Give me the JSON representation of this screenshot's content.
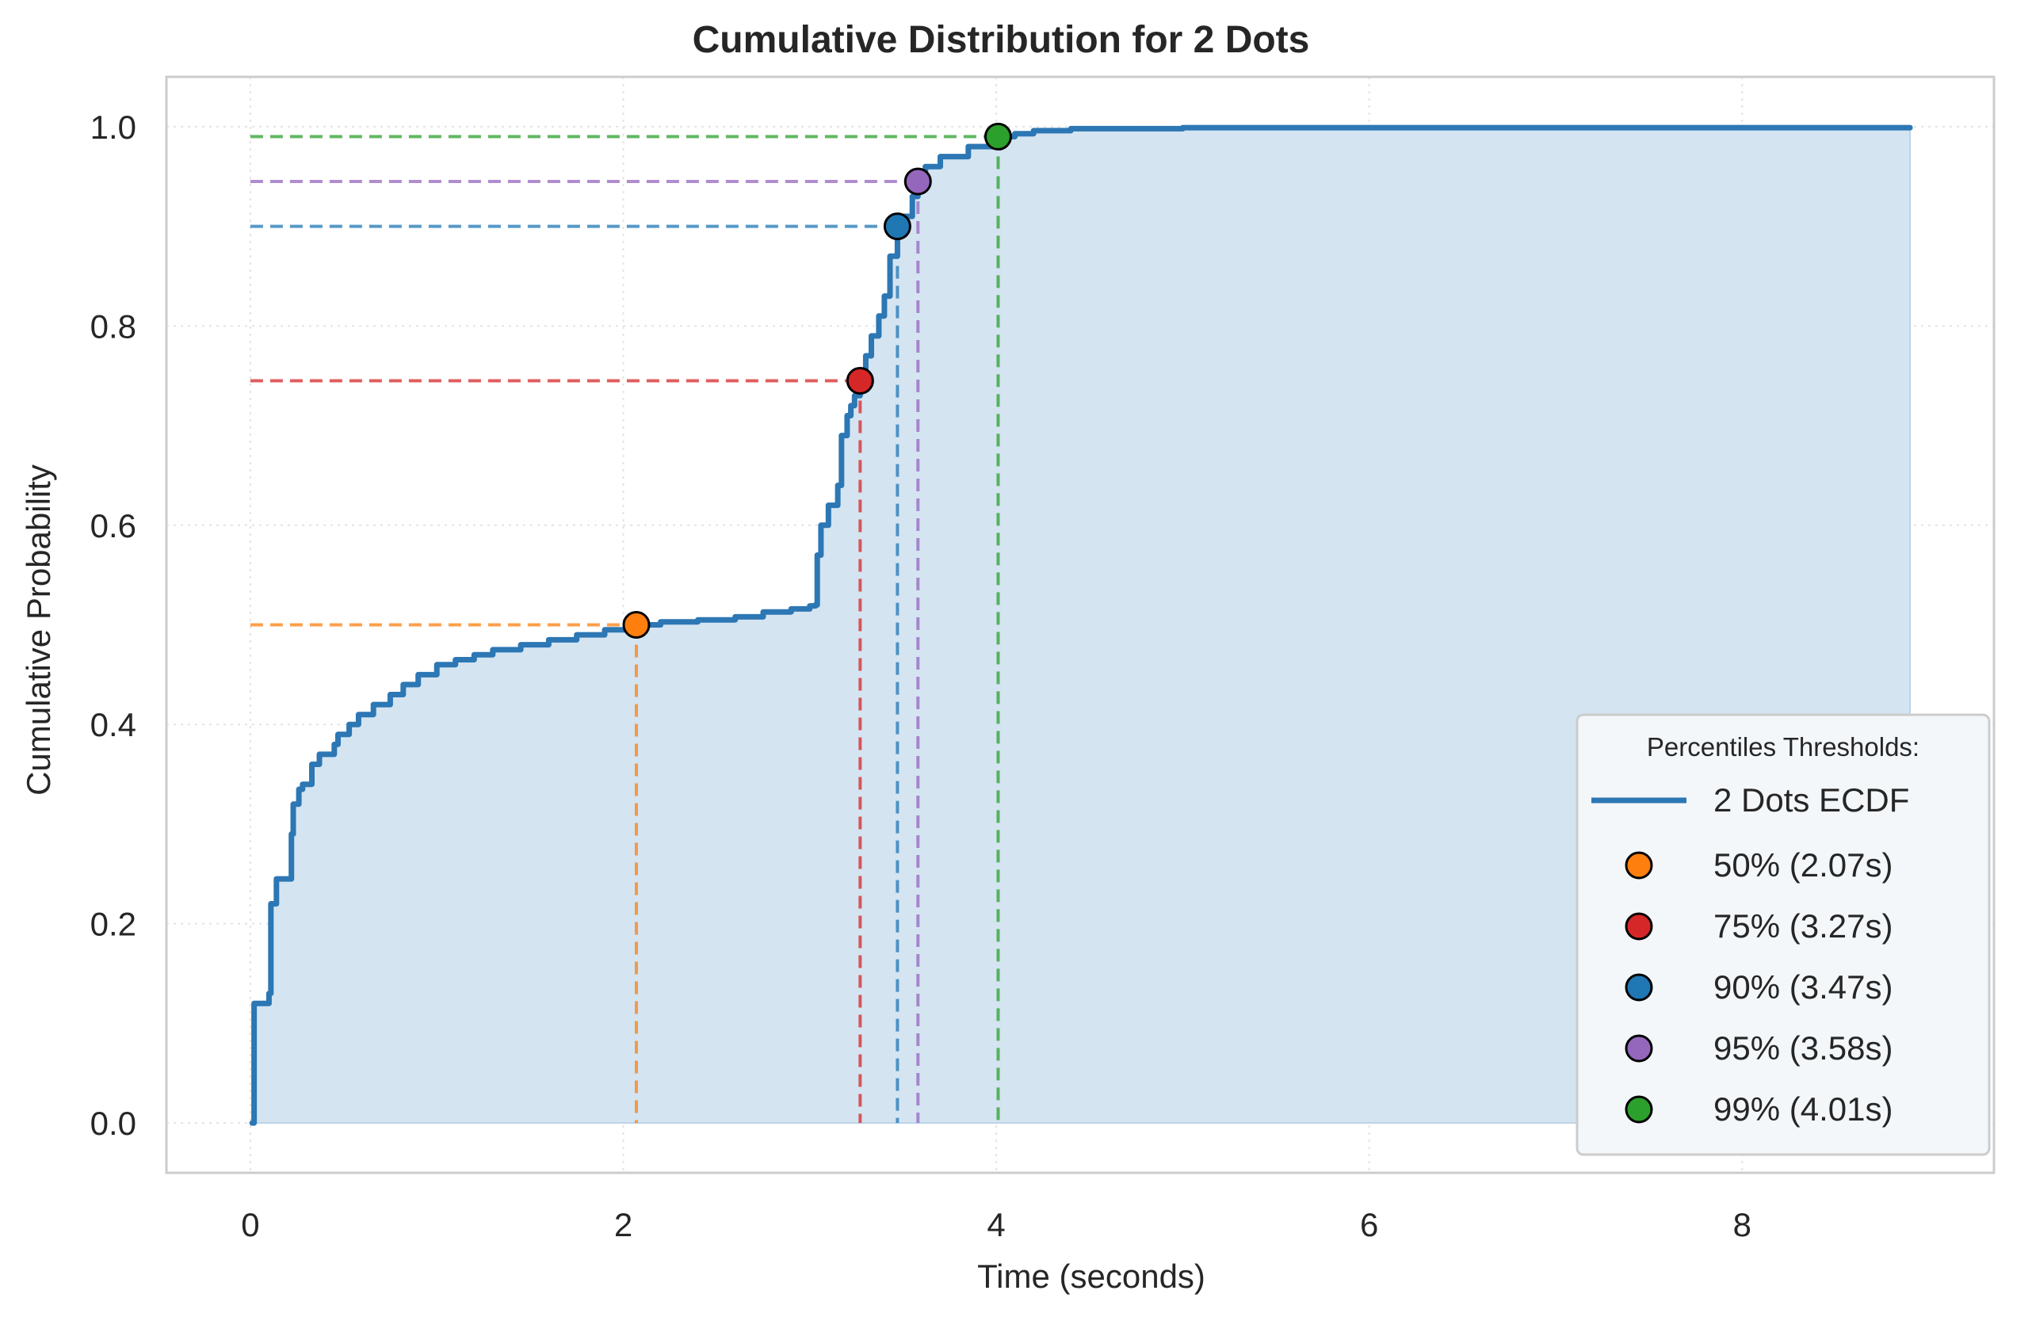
{
  "chart_data": {
    "type": "line",
    "title": "Cumulative Distribution for 2 Dots",
    "xlabel": "Time (seconds)",
    "ylabel": "Cumulative Probability",
    "xlim": [
      -0.45,
      9.35
    ],
    "ylim": [
      -0.05,
      1.05
    ],
    "xticks": [
      0,
      2,
      4,
      6,
      8
    ],
    "xtick_labels": [
      "0",
      "2",
      "4",
      "6",
      "8"
    ],
    "yticks": [
      0.0,
      0.2,
      0.4,
      0.6,
      0.8,
      1.0
    ],
    "ytick_labels": [
      "0.0",
      "0.2",
      "0.4",
      "0.6",
      "0.8",
      "1.0"
    ],
    "grid": true,
    "legend_position": "lower-right",
    "legend_title": "Percentiles Thresholds:",
    "series": [
      {
        "name": "2 Dots ECDF",
        "color": "#2c77b4",
        "fill_color": "#d4e4f1",
        "x": [
          0.01,
          0.02,
          0.1,
          0.11,
          0.14,
          0.2,
          0.22,
          0.23,
          0.26,
          0.28,
          0.33,
          0.37,
          0.45,
          0.47,
          0.53,
          0.58,
          0.66,
          0.75,
          0.82,
          0.9,
          1.0,
          1.1,
          1.2,
          1.3,
          1.45,
          1.6,
          1.75,
          1.9,
          2.07,
          2.2,
          2.4,
          2.6,
          2.75,
          2.9,
          3.0,
          3.03,
          3.04,
          3.06,
          3.1,
          3.15,
          3.17,
          3.2,
          3.22,
          3.24,
          3.27,
          3.3,
          3.33,
          3.37,
          3.4,
          3.43,
          3.47,
          3.5,
          3.55,
          3.58,
          3.62,
          3.7,
          3.85,
          4.01,
          4.1,
          4.2,
          4.4,
          5.0,
          6.0,
          7.0,
          8.0,
          8.9
        ],
        "y": [
          0.0,
          0.12,
          0.13,
          0.22,
          0.245,
          0.245,
          0.29,
          0.32,
          0.335,
          0.34,
          0.36,
          0.37,
          0.38,
          0.39,
          0.4,
          0.41,
          0.42,
          0.43,
          0.44,
          0.45,
          0.46,
          0.465,
          0.47,
          0.475,
          0.48,
          0.485,
          0.49,
          0.495,
          0.5,
          0.503,
          0.505,
          0.508,
          0.513,
          0.516,
          0.519,
          0.52,
          0.57,
          0.6,
          0.62,
          0.64,
          0.69,
          0.71,
          0.72,
          0.73,
          0.745,
          0.77,
          0.79,
          0.81,
          0.83,
          0.87,
          0.9,
          0.91,
          0.93,
          0.945,
          0.96,
          0.97,
          0.98,
          0.99,
          0.993,
          0.996,
          0.998,
          0.999,
          0.999,
          0.999,
          0.999,
          0.999
        ]
      }
    ],
    "percentiles": [
      {
        "label": "50% (2.07s)",
        "x": 2.07,
        "y": 0.5,
        "color": "#ff7f0e"
      },
      {
        "label": "75% (3.27s)",
        "x": 3.27,
        "y": 0.745,
        "color": "#d62728"
      },
      {
        "label": "90% (3.47s)",
        "x": 3.47,
        "y": 0.9,
        "color": "#1f77b4"
      },
      {
        "label": "95% (3.58s)",
        "x": 3.58,
        "y": 0.945,
        "color": "#9467bd"
      },
      {
        "label": "99% (4.01s)",
        "x": 4.01,
        "y": 0.99,
        "color": "#2ca02c"
      }
    ]
  }
}
